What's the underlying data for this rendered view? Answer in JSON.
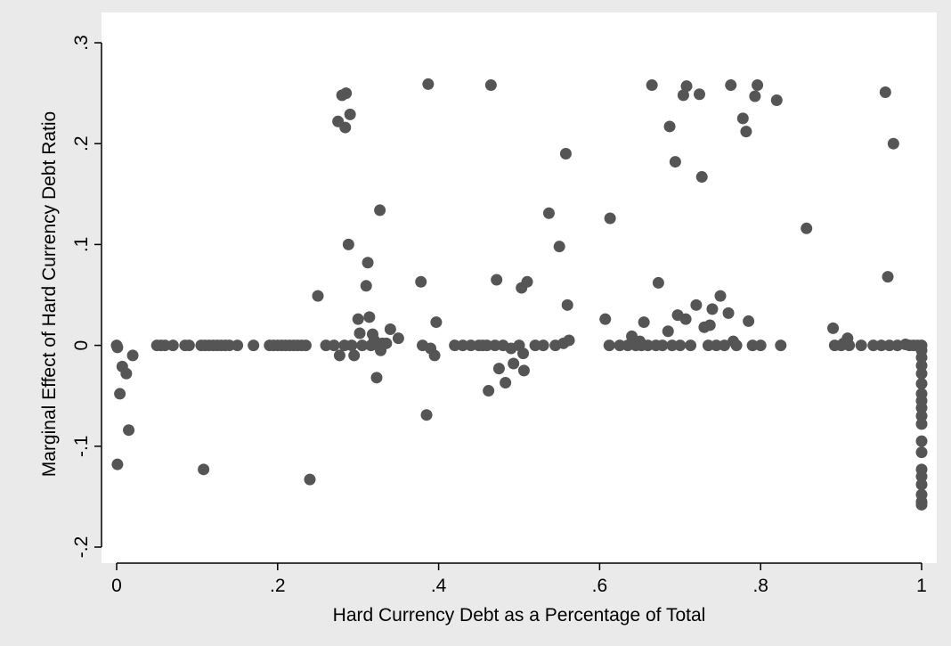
{
  "chart_data": {
    "type": "scatter",
    "xlabel": "Hard Currency Debt as a Percentage of Total",
    "ylabel": "Marginal Effect of Hard Currency Debt Ratio",
    "xlim": [
      0,
      1
    ],
    "ylim": [
      -0.2,
      0.3
    ],
    "x_ticks": [
      0,
      0.2,
      0.4,
      0.6,
      0.8,
      1
    ],
    "x_tick_labels": [
      "0",
      ".2",
      ".4",
      ".6",
      ".8",
      "1"
    ],
    "y_ticks": [
      -0.2,
      -0.1,
      0,
      0.1,
      0.2,
      0.3
    ],
    "y_tick_labels": [
      "-.2",
      "-.1",
      "0",
      ".1",
      ".2",
      ".3"
    ],
    "grid": true,
    "colors": {
      "background": "#eaeaea",
      "plot_area": "#ffffff",
      "marker": "#555555",
      "grid": "#eaeaea"
    },
    "points": [
      [
        0.0,
        0.0
      ],
      [
        0.001,
        -0.002
      ],
      [
        0.001,
        -0.118
      ],
      [
        0.004,
        -0.048
      ],
      [
        0.007,
        -0.021
      ],
      [
        0.012,
        -0.028
      ],
      [
        0.015,
        -0.084
      ],
      [
        0.02,
        -0.01
      ],
      [
        0.05,
        0.0
      ],
      [
        0.055,
        0.0
      ],
      [
        0.06,
        0.0
      ],
      [
        0.07,
        0.0
      ],
      [
        0.085,
        0.0
      ],
      [
        0.09,
        0.0
      ],
      [
        0.105,
        0.0
      ],
      [
        0.108,
        -0.123
      ],
      [
        0.11,
        0.0
      ],
      [
        0.115,
        0.0
      ],
      [
        0.12,
        0.0
      ],
      [
        0.125,
        0.0
      ],
      [
        0.13,
        0.0
      ],
      [
        0.135,
        0.0
      ],
      [
        0.14,
        0.0
      ],
      [
        0.15,
        0.0
      ],
      [
        0.17,
        0.0
      ],
      [
        0.19,
        0.0
      ],
      [
        0.195,
        0.0
      ],
      [
        0.2,
        0.0
      ],
      [
        0.205,
        0.0
      ],
      [
        0.21,
        0.0
      ],
      [
        0.215,
        0.0
      ],
      [
        0.22,
        0.0
      ],
      [
        0.225,
        0.0
      ],
      [
        0.23,
        0.0
      ],
      [
        0.235,
        0.0
      ],
      [
        0.24,
        -0.133
      ],
      [
        0.25,
        0.049
      ],
      [
        0.26,
        0.0
      ],
      [
        0.27,
        0.0
      ],
      [
        0.275,
        0.222
      ],
      [
        0.277,
        -0.01
      ],
      [
        0.28,
        0.248
      ],
      [
        0.283,
        0.0
      ],
      [
        0.284,
        0.216
      ],
      [
        0.285,
        0.25
      ],
      [
        0.288,
        0.1
      ],
      [
        0.29,
        0.229
      ],
      [
        0.292,
        0.0
      ],
      [
        0.295,
        -0.01
      ],
      [
        0.3,
        0.026
      ],
      [
        0.302,
        0.012
      ],
      [
        0.305,
        0.0
      ],
      [
        0.31,
        0.059
      ],
      [
        0.312,
        0.082
      ],
      [
        0.314,
        0.028
      ],
      [
        0.316,
        0.0
      ],
      [
        0.318,
        0.011
      ],
      [
        0.32,
        0.005
      ],
      [
        0.323,
        -0.032
      ],
      [
        0.325,
        0.0
      ],
      [
        0.327,
        0.134
      ],
      [
        0.328,
        -0.005
      ],
      [
        0.33,
        0.002
      ],
      [
        0.335,
        0.002
      ],
      [
        0.34,
        0.016
      ],
      [
        0.35,
        0.007
      ],
      [
        0.378,
        0.063
      ],
      [
        0.38,
        0.0
      ],
      [
        0.385,
        -0.069
      ],
      [
        0.387,
        0.259
      ],
      [
        0.39,
        -0.003
      ],
      [
        0.395,
        -0.01
      ],
      [
        0.397,
        0.023
      ],
      [
        0.42,
        0.0
      ],
      [
        0.43,
        0.0
      ],
      [
        0.44,
        0.0
      ],
      [
        0.45,
        0.0
      ],
      [
        0.455,
        0.0
      ],
      [
        0.46,
        0.0
      ],
      [
        0.462,
        -0.045
      ],
      [
        0.465,
        0.258
      ],
      [
        0.47,
        0.0
      ],
      [
        0.472,
        0.065
      ],
      [
        0.475,
        -0.023
      ],
      [
        0.48,
        0.0
      ],
      [
        0.483,
        -0.037
      ],
      [
        0.49,
        -0.003
      ],
      [
        0.493,
        -0.018
      ],
      [
        0.5,
        0.0
      ],
      [
        0.503,
        0.057
      ],
      [
        0.505,
        -0.008
      ],
      [
        0.506,
        -0.025
      ],
      [
        0.51,
        0.063
      ],
      [
        0.52,
        0.0
      ],
      [
        0.53,
        0.0
      ],
      [
        0.537,
        0.131
      ],
      [
        0.545,
        0.0
      ],
      [
        0.55,
        0.098
      ],
      [
        0.555,
        0.002
      ],
      [
        0.558,
        0.19
      ],
      [
        0.56,
        0.04
      ],
      [
        0.562,
        0.005
      ],
      [
        0.607,
        0.026
      ],
      [
        0.612,
        0.0
      ],
      [
        0.613,
        0.126
      ],
      [
        0.625,
        0.0
      ],
      [
        0.635,
        0.0
      ],
      [
        0.64,
        0.009
      ],
      [
        0.645,
        0.0
      ],
      [
        0.65,
        0.004
      ],
      [
        0.652,
        0.0
      ],
      [
        0.655,
        0.023
      ],
      [
        0.66,
        0.0
      ],
      [
        0.665,
        0.258
      ],
      [
        0.67,
        0.0
      ],
      [
        0.673,
        0.062
      ],
      [
        0.678,
        0.0
      ],
      [
        0.685,
        0.014
      ],
      [
        0.687,
        0.217
      ],
      [
        0.69,
        0.0
      ],
      [
        0.694,
        0.182
      ],
      [
        0.697,
        0.03
      ],
      [
        0.7,
        0.0
      ],
      [
        0.704,
        0.248
      ],
      [
        0.707,
        0.026
      ],
      [
        0.708,
        0.257
      ],
      [
        0.713,
        0.0
      ],
      [
        0.72,
        0.04
      ],
      [
        0.724,
        0.249
      ],
      [
        0.727,
        0.167
      ],
      [
        0.73,
        0.018
      ],
      [
        0.735,
        0.0
      ],
      [
        0.737,
        0.02
      ],
      [
        0.74,
        0.036
      ],
      [
        0.745,
        0.0
      ],
      [
        0.75,
        0.049
      ],
      [
        0.755,
        0.0
      ],
      [
        0.76,
        0.032
      ],
      [
        0.763,
        0.258
      ],
      [
        0.766,
        0.004
      ],
      [
        0.77,
        0.0
      ],
      [
        0.778,
        0.225
      ],
      [
        0.782,
        0.212
      ],
      [
        0.785,
        0.024
      ],
      [
        0.79,
        0.0
      ],
      [
        0.793,
        0.247
      ],
      [
        0.796,
        0.258
      ],
      [
        0.8,
        0.0
      ],
      [
        0.82,
        0.243
      ],
      [
        0.825,
        0.0
      ],
      [
        0.857,
        0.116
      ],
      [
        0.89,
        0.017
      ],
      [
        0.892,
        0.0
      ],
      [
        0.9,
        0.0
      ],
      [
        0.903,
        0.002
      ],
      [
        0.908,
        0.007
      ],
      [
        0.91,
        0.0
      ],
      [
        0.925,
        0.0
      ],
      [
        0.94,
        0.0
      ],
      [
        0.95,
        0.0
      ],
      [
        0.955,
        0.251
      ],
      [
        0.958,
        0.068
      ],
      [
        0.96,
        0.0
      ],
      [
        0.965,
        0.2
      ],
      [
        0.97,
        0.0
      ],
      [
        0.98,
        0.001
      ],
      [
        0.985,
        0.0
      ],
      [
        0.99,
        0.0
      ],
      [
        0.995,
        0.0
      ],
      [
        1.0,
        0.0
      ],
      [
        1.0,
        -0.005
      ],
      [
        1.0,
        -0.012
      ],
      [
        1.0,
        -0.02
      ],
      [
        1.0,
        -0.028
      ],
      [
        1.0,
        -0.038
      ],
      [
        1.0,
        -0.048
      ],
      [
        1.0,
        -0.055
      ],
      [
        1.0,
        -0.062
      ],
      [
        1.0,
        -0.07
      ],
      [
        1.0,
        -0.078
      ],
      [
        1.0,
        -0.095
      ],
      [
        1.0,
        -0.106
      ],
      [
        1.0,
        -0.123
      ],
      [
        1.0,
        -0.13
      ],
      [
        1.0,
        -0.138
      ],
      [
        1.0,
        -0.148
      ],
      [
        1.0,
        -0.155
      ],
      [
        1.0,
        -0.158
      ]
    ]
  }
}
